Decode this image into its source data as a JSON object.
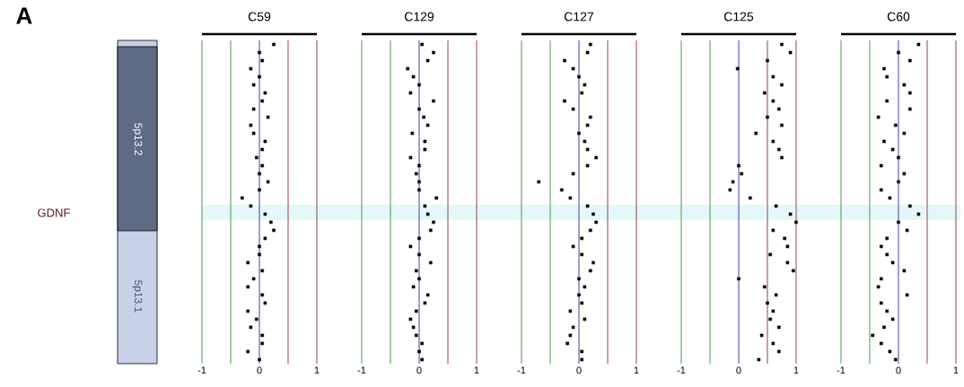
{
  "chart_data": [
    {
      "type": "scatter",
      "orientation": "horizontal",
      "title": "C59",
      "annotations": [
        "A",
        "GDNF",
        "5p13.2",
        "5p13.1"
      ],
      "marker": "square",
      "color": "#000000",
      "xlim": [
        -1,
        1
      ],
      "xticks": [
        -1,
        0,
        1
      ],
      "categories": [
        null,
        null,
        null,
        null,
        null,
        null,
        null,
        null,
        null,
        null,
        null,
        null,
        null,
        null,
        null,
        null,
        null,
        null,
        null,
        null,
        null,
        null,
        null,
        null,
        null,
        null,
        null,
        null,
        null,
        null,
        null,
        null,
        null,
        null,
        null,
        null,
        null,
        null,
        null,
        null
      ],
      "values": [
        0.25,
        0.0,
        0.05,
        -0.15,
        0.0,
        -0.1,
        0.1,
        0.05,
        -0.1,
        0.15,
        -0.15,
        -0.1,
        0.1,
        0.05,
        -0.05,
        0.05,
        0.0,
        0.15,
        0.0,
        -0.3,
        -0.15,
        0.1,
        0.2,
        0.25,
        0.1,
        0.0,
        0.0,
        -0.2,
        0.05,
        -0.1,
        -0.2,
        0.05,
        0.1,
        -0.2,
        -0.05,
        -0.15,
        0.05,
        0.05,
        -0.2,
        0.0
      ],
      "ref_lines": [
        {
          "axis": "x",
          "value": -1,
          "color": "#3d8a3d"
        },
        {
          "axis": "x",
          "value": -0.5,
          "color": "#3d8a3d"
        },
        {
          "axis": "x",
          "value": 0,
          "color": "#2b2ba0"
        },
        {
          "axis": "x",
          "value": 0.5,
          "color": "#8a2b3d"
        },
        {
          "axis": "x",
          "value": 1,
          "color": "#8a2b3d"
        }
      ],
      "grid": false
    },
    {
      "type": "scatter",
      "orientation": "horizontal",
      "title": "C129",
      "marker": "square",
      "color": "#000000",
      "xlim": [
        -1,
        1
      ],
      "xticks": [
        -1,
        0,
        1
      ],
      "categories": [
        null,
        null,
        null,
        null,
        null,
        null,
        null,
        null,
        null,
        null,
        null,
        null,
        null,
        null,
        null,
        null,
        null,
        null,
        null,
        null,
        null,
        null,
        null,
        null,
        null,
        null,
        null,
        null,
        null,
        null,
        null,
        null,
        null,
        null,
        null,
        null,
        null,
        null,
        null,
        null
      ],
      "values": [
        0.05,
        0.25,
        0.15,
        -0.2,
        -0.1,
        0.0,
        -0.15,
        0.25,
        0.0,
        0.08,
        0.15,
        -0.12,
        0.1,
        0.1,
        -0.15,
        0.0,
        -0.05,
        0.0,
        0.0,
        0.3,
        0.1,
        0.15,
        0.25,
        0.2,
        0.0,
        -0.15,
        0.0,
        0.2,
        -0.05,
        0.0,
        -0.1,
        0.15,
        0.1,
        -0.05,
        -0.15,
        -0.1,
        -0.05,
        0.05,
        0.0,
        0.05
      ],
      "ref_lines": [
        {
          "axis": "x",
          "value": -1,
          "color": "#3d8a3d"
        },
        {
          "axis": "x",
          "value": -0.5,
          "color": "#3d8a3d"
        },
        {
          "axis": "x",
          "value": 0,
          "color": "#2b2ba0"
        },
        {
          "axis": "x",
          "value": 0.5,
          "color": "#8a2b3d"
        },
        {
          "axis": "x",
          "value": 1,
          "color": "#8a2b3d"
        }
      ],
      "grid": false
    },
    {
      "type": "scatter",
      "orientation": "horizontal",
      "title": "C127",
      "marker": "square",
      "color": "#000000",
      "xlim": [
        -1,
        1
      ],
      "xticks": [
        -1,
        0,
        1
      ],
      "categories": [
        null,
        null,
        null,
        null,
        null,
        null,
        null,
        null,
        null,
        null,
        null,
        null,
        null,
        null,
        null,
        null,
        null,
        null,
        null,
        null,
        null,
        null,
        null,
        null,
        null,
        null,
        null,
        null,
        null,
        null,
        null,
        null,
        null,
        null,
        null,
        null,
        null,
        null,
        null,
        null
      ],
      "values": [
        0.2,
        0.15,
        -0.25,
        -0.1,
        0.0,
        0.1,
        0.05,
        -0.25,
        -0.1,
        0.2,
        0.15,
        0.0,
        0.1,
        0.15,
        0.3,
        0.15,
        -0.1,
        -0.7,
        -0.3,
        -0.15,
        0.15,
        0.25,
        0.3,
        0.2,
        0.05,
        -0.1,
        0.05,
        0.25,
        0.2,
        0.0,
        0.1,
        0.0,
        0.05,
        -0.15,
        0.1,
        -0.1,
        -0.15,
        -0.2,
        0.05,
        0.05
      ],
      "ref_lines": [
        {
          "axis": "x",
          "value": -1,
          "color": "#3d8a3d"
        },
        {
          "axis": "x",
          "value": -0.5,
          "color": "#3d8a3d"
        },
        {
          "axis": "x",
          "value": 0,
          "color": "#2b2ba0"
        },
        {
          "axis": "x",
          "value": 0.5,
          "color": "#8a2b3d"
        },
        {
          "axis": "x",
          "value": 1,
          "color": "#8a2b3d"
        }
      ],
      "grid": false
    },
    {
      "type": "scatter",
      "orientation": "horizontal",
      "title": "C125",
      "marker": "square",
      "color": "#000000",
      "xlim": [
        -1,
        1
      ],
      "xticks": [
        -1,
        0,
        1
      ],
      "categories": [
        null,
        null,
        null,
        null,
        null,
        null,
        null,
        null,
        null,
        null,
        null,
        null,
        null,
        null,
        null,
        null,
        null,
        null,
        null,
        null,
        null,
        null,
        null,
        null,
        null,
        null,
        null,
        null,
        null,
        null,
        null,
        null,
        null,
        null,
        null,
        null,
        null,
        null,
        null,
        null
      ],
      "values": [
        0.75,
        0.9,
        0.5,
        -0.02,
        0.6,
        0.75,
        0.45,
        0.6,
        0.7,
        0.5,
        0.75,
        0.3,
        0.6,
        0.7,
        0.75,
        0.0,
        0.05,
        -0.1,
        -0.15,
        0.2,
        0.65,
        0.9,
        1.0,
        0.6,
        0.8,
        0.85,
        0.55,
        0.85,
        0.95,
        0.0,
        0.45,
        0.65,
        0.5,
        0.6,
        0.55,
        0.7,
        0.4,
        0.6,
        0.7,
        0.35
      ],
      "ref_lines": [
        {
          "axis": "x",
          "value": -1,
          "color": "#3d8a3d"
        },
        {
          "axis": "x",
          "value": -0.5,
          "color": "#3d8a3d"
        },
        {
          "axis": "x",
          "value": 0,
          "color": "#2b2ba0"
        },
        {
          "axis": "x",
          "value": 0.5,
          "color": "#8a2b3d"
        },
        {
          "axis": "x",
          "value": 1,
          "color": "#8a2b3d"
        }
      ],
      "grid": false
    },
    {
      "type": "scatter",
      "orientation": "horizontal",
      "title": "C60",
      "marker": "square",
      "color": "#000000",
      "xlim": [
        -1,
        1
      ],
      "xticks": [
        -1,
        0,
        1
      ],
      "categories": [
        null,
        null,
        null,
        null,
        null,
        null,
        null,
        null,
        null,
        null,
        null,
        null,
        null,
        null,
        null,
        null,
        null,
        null,
        null,
        null,
        null,
        null,
        null,
        null,
        null,
        null,
        null,
        null,
        null,
        null,
        null,
        null,
        null,
        null,
        null,
        null,
        null,
        null,
        null,
        null
      ],
      "values": [
        0.35,
        0.0,
        0.2,
        -0.25,
        -0.2,
        0.1,
        0.2,
        -0.2,
        0.2,
        -0.35,
        -0.05,
        0.1,
        -0.25,
        -0.1,
        0.0,
        -0.3,
        0.1,
        0.0,
        -0.3,
        -0.15,
        0.2,
        0.35,
        0.0,
        0.15,
        -0.2,
        -0.3,
        -0.2,
        -0.1,
        0.1,
        -0.3,
        -0.35,
        0.15,
        -0.3,
        -0.2,
        -0.1,
        -0.25,
        -0.45,
        -0.3,
        -0.15,
        -0.05
      ],
      "ref_lines": [
        {
          "axis": "x",
          "value": -1,
          "color": "#3d8a3d"
        },
        {
          "axis": "x",
          "value": -0.5,
          "color": "#3d8a3d"
        },
        {
          "axis": "x",
          "value": 0,
          "color": "#2b2ba0"
        },
        {
          "axis": "x",
          "value": 0.5,
          "color": "#8a2b3d"
        },
        {
          "axis": "x",
          "value": 1,
          "color": "#8a2b3d"
        }
      ],
      "grid": false
    }
  ]
}
